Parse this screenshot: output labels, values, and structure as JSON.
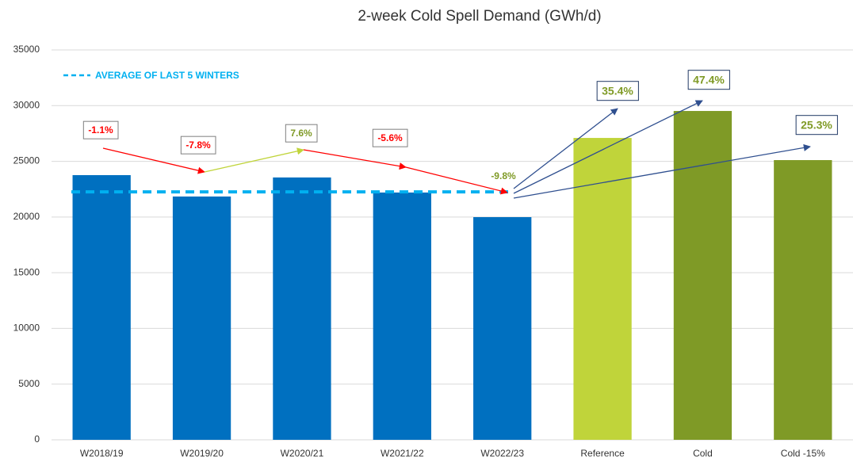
{
  "chart_data": {
    "type": "bar",
    "title": "2-week Cold Spell Demand (GWh/d)",
    "categories": [
      "W2018/19",
      "W2019/20",
      "W2020/21",
      "W2021/22",
      "W2022/23",
      "Reference",
      "Cold",
      "Cold -15%"
    ],
    "values": [
      23760,
      21840,
      23550,
      22200,
      19990,
      27100,
      29520,
      25110
    ],
    "colors": [
      "#0070c0",
      "#0070c0",
      "#0070c0",
      "#0070c0",
      "#0070c0",
      "#c0d43a",
      "#7f9a26",
      "#7f9a26"
    ],
    "ylim": [
      0,
      35000
    ],
    "yticks": [
      0,
      5000,
      10000,
      15000,
      20000,
      25000,
      30000,
      35000
    ],
    "grid": true,
    "average": {
      "name": "AVERAGE OF LAST 5 WINTERS",
      "value": 22260,
      "color": "#00b0f0"
    },
    "annotations": [
      {
        "text": "-1.1%",
        "color": "#ff0000"
      },
      {
        "text": "-7.8%",
        "color": "#ff0000"
      },
      {
        "text": "7.6%",
        "color": "#7f9a26"
      },
      {
        "text": "-5.6%",
        "color": "#ff0000"
      },
      {
        "text": "-9.8%",
        "color": "#7f9a26"
      },
      {
        "text": "35.4%",
        "color": "#7f9a26"
      },
      {
        "text": "47.4%",
        "color": "#7f9a26"
      },
      {
        "text": "25.3%",
        "color": "#7f9a26"
      }
    ]
  }
}
